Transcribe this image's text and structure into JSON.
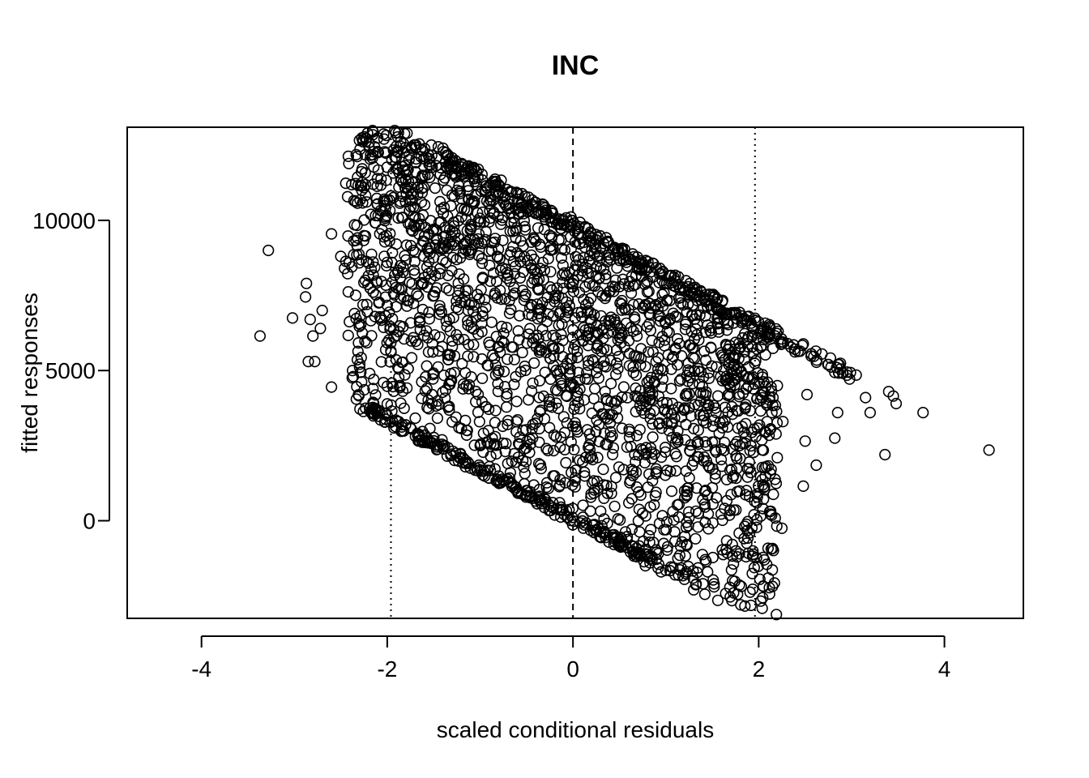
{
  "chart_data": {
    "type": "scatter",
    "title": "INC",
    "xlabel": "scaled conditional residuals",
    "ylabel": "fitted responses",
    "xlim": [
      -4.8,
      4.85
    ],
    "ylim": [
      -3250,
      13100
    ],
    "xticks": [
      -4,
      -2,
      0,
      2,
      4
    ],
    "xtick_labels": [
      "-4",
      "-2",
      "0",
      "2",
      "4"
    ],
    "yticks": [
      0,
      5000,
      10000
    ],
    "ytick_labels": [
      "0",
      "5000",
      "10000"
    ],
    "grid": false,
    "legend": "none",
    "reference_lines": [
      {
        "x": -1.96,
        "style": "dotted"
      },
      {
        "x": 0,
        "style": "dashed"
      },
      {
        "x": 1.96,
        "style": "dotted"
      }
    ],
    "band": {
      "description": "points fill a diagonal band bounded approximately by y = 10000 - 1650*x (upper) and y = -100 - 1650*x (lower)",
      "x_center_range": [
        -2.4,
        2.2
      ],
      "dense_count": 2200
    },
    "points": [
      [
        -3.37,
        6150
      ],
      [
        -3.28,
        9000
      ],
      [
        -3.02,
        6750
      ],
      [
        -2.87,
        7900
      ],
      [
        -2.88,
        7450
      ],
      [
        -2.83,
        6700
      ],
      [
        -2.8,
        6150
      ],
      [
        -2.78,
        5300
      ],
      [
        -2.85,
        5300
      ],
      [
        -2.72,
        6400
      ],
      [
        -2.7,
        7000
      ],
      [
        -2.6,
        9550
      ],
      [
        -2.6,
        4450
      ],
      [
        -2.5,
        8800
      ],
      [
        -2.46,
        8400
      ],
      [
        -2.38,
        8450
      ],
      [
        -2.22,
        7200
      ],
      [
        -2.15,
        11200
      ],
      [
        -2.05,
        10300
      ],
      [
        -2.0,
        8600
      ],
      [
        -1.95,
        8600
      ],
      [
        -1.85,
        7750
      ],
      [
        -1.72,
        9000
      ],
      [
        -1.7,
        10100
      ],
      [
        -1.62,
        11500
      ],
      [
        -1.58,
        12100
      ],
      [
        -1.45,
        12450
      ],
      [
        -1.4,
        12400
      ],
      [
        -1.5,
        9700
      ],
      [
        -1.3,
        11550
      ],
      [
        -1.2,
        10400
      ],
      [
        1.73,
        1500
      ],
      [
        1.95,
        3050
      ],
      [
        1.95,
        200
      ],
      [
        1.98,
        600
      ],
      [
        1.97,
        2800
      ],
      [
        2.06,
        4250
      ],
      [
        2.08,
        1800
      ],
      [
        2.2,
        2100
      ],
      [
        2.25,
        -250
      ],
      [
        2.26,
        3300
      ],
      [
        2.48,
        1150
      ],
      [
        2.5,
        2650
      ],
      [
        2.52,
        4200
      ],
      [
        2.62,
        1850
      ],
      [
        2.82,
        2750
      ],
      [
        2.85,
        3600
      ],
      [
        2.88,
        5050
      ],
      [
        2.95,
        4950
      ],
      [
        3.05,
        4850
      ],
      [
        3.15,
        4100
      ],
      [
        3.2,
        3600
      ],
      [
        3.36,
        2200
      ],
      [
        3.4,
        4300
      ],
      [
        3.45,
        4150
      ],
      [
        3.48,
        3900
      ],
      [
        3.77,
        3600
      ],
      [
        4.48,
        2350
      ],
      [
        1.4,
        -2100
      ],
      [
        1.45,
        -1700
      ],
      [
        1.52,
        -2200
      ],
      [
        1.56,
        -2650
      ],
      [
        1.42,
        -2450
      ],
      [
        1.3,
        -2300
      ],
      [
        1.2,
        -1950
      ],
      [
        1.1,
        -1800
      ],
      [
        1.0,
        -1650
      ],
      [
        0.95,
        -1700
      ],
      [
        1.15,
        -1150
      ],
      [
        0.78,
        -1500
      ],
      [
        0.7,
        -1050
      ],
      [
        0.62,
        -1050
      ],
      [
        0.9,
        -1050
      ],
      [
        1.32,
        -600
      ],
      [
        1.25,
        100
      ],
      [
        1.35,
        250
      ],
      [
        1.45,
        850
      ],
      [
        1.5,
        1100
      ],
      [
        0.98,
        -300
      ],
      [
        0.82,
        -500
      ],
      [
        0.75,
        250
      ],
      [
        0.73,
        850
      ]
    ]
  }
}
